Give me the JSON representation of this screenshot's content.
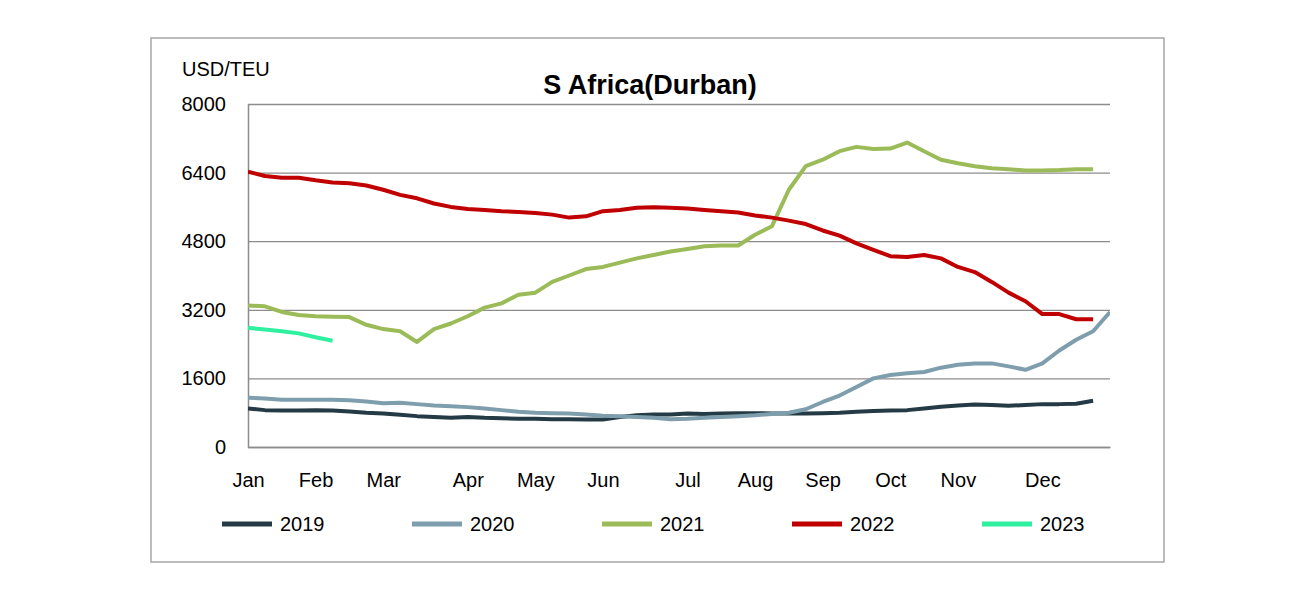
{
  "chart_data": {
    "type": "line",
    "title": "S Africa(Durban)",
    "y_label": "USD/TEU",
    "categories": [
      "Jan",
      null,
      null,
      null,
      "Feb",
      null,
      null,
      null,
      "Mar",
      null,
      null,
      null,
      null,
      "Apr",
      null,
      null,
      null,
      "May",
      null,
      null,
      null,
      "Jun",
      null,
      null,
      null,
      null,
      "Jul",
      null,
      null,
      null,
      "Aug",
      null,
      null,
      null,
      "Sep",
      null,
      null,
      null,
      "Oct",
      null,
      null,
      null,
      "Nov",
      null,
      null,
      null,
      null,
      "Dec",
      null,
      null,
      null,
      null
    ],
    "series": [
      {
        "name": "2019",
        "color": "#243a45",
        "values": [
          900,
          860,
          850,
          850,
          860,
          850,
          830,
          800,
          780,
          750,
          720,
          700,
          680,
          700,
          680,
          670,
          660,
          660,
          650,
          650,
          640,
          640,
          700,
          740,
          760,
          760,
          780,
          770,
          780,
          790,
          790,
          780,
          780,
          780,
          790,
          800,
          820,
          840,
          850,
          860,
          900,
          940,
          970,
          990,
          980,
          960,
          980,
          1000,
          1000,
          1010,
          1080,
          null
        ]
      },
      {
        "name": "2020",
        "color": "#7e9ead",
        "values": [
          1150,
          1130,
          1100,
          1100,
          1100,
          1100,
          1090,
          1060,
          1020,
          1030,
          1000,
          970,
          950,
          930,
          900,
          860,
          820,
          800,
          790,
          780,
          760,
          730,
          720,
          700,
          680,
          650,
          660,
          680,
          700,
          720,
          740,
          770,
          800,
          880,
          1050,
          1200,
          1400,
          1600,
          1680,
          1720,
          1750,
          1850,
          1920,
          1950,
          1950,
          1880,
          1800,
          1950,
          2250,
          2500,
          2700,
          3150
        ]
      },
      {
        "name": "2021",
        "color": "#9bbb59",
        "values": [
          3300,
          3280,
          3150,
          3080,
          3050,
          3040,
          3030,
          2850,
          2750,
          2700,
          2450,
          2750,
          2880,
          3050,
          3250,
          3350,
          3550,
          3600,
          3850,
          4000,
          4150,
          4200,
          4300,
          4400,
          4480,
          4560,
          4620,
          4680,
          4700,
          4700,
          4950,
          5150,
          6000,
          6550,
          6700,
          6900,
          7000,
          6950,
          6960,
          7100,
          6900,
          6700,
          6620,
          6550,
          6500,
          6480,
          6450,
          6450,
          6460,
          6480,
          6480,
          null
        ]
      },
      {
        "name": "2022",
        "color": "#c00000",
        "values": [
          6420,
          6320,
          6280,
          6280,
          6220,
          6170,
          6150,
          6100,
          6000,
          5880,
          5800,
          5680,
          5600,
          5550,
          5530,
          5500,
          5480,
          5460,
          5420,
          5350,
          5380,
          5500,
          5530,
          5580,
          5590,
          5580,
          5560,
          5530,
          5500,
          5470,
          5400,
          5350,
          5280,
          5200,
          5050,
          4930,
          4750,
          4600,
          4450,
          4430,
          4480,
          4400,
          4200,
          4080,
          3850,
          3600,
          3400,
          3100,
          3100,
          2980,
          2980,
          null
        ]
      },
      {
        "name": "2023",
        "color": "#2ef0a0",
        "values": [
          2780,
          2740,
          2700,
          2650,
          2560,
          2480,
          null,
          null,
          null,
          null,
          null,
          null,
          null,
          null,
          null,
          null,
          null,
          null,
          null,
          null,
          null,
          null,
          null,
          null,
          null,
          null,
          null,
          null,
          null,
          null,
          null,
          null,
          null,
          null,
          null,
          null,
          null,
          null,
          null,
          null,
          null,
          null,
          null,
          null,
          null,
          null,
          null,
          null,
          null,
          null,
          null,
          null
        ]
      }
    ],
    "ylim": [
      0,
      8000
    ],
    "yticks": [
      0,
      1600,
      3200,
      4800,
      6400,
      8000
    ],
    "grid": true,
    "legend": "bottom"
  }
}
